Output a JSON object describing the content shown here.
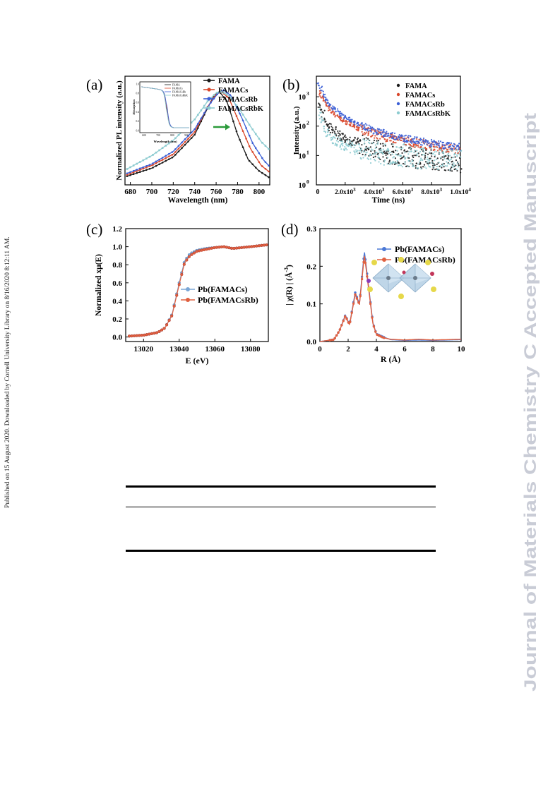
{
  "sidebar_text": "Published on 15 August 2020. Downloaded by Cornell University Library on 8/16/2020 8:12:11 AM.",
  "watermark": "Journal of Materials Chemistry C Accepted Manuscript",
  "colors": {
    "FAMA": "#1a1a1a",
    "FAMACs": "#d9472b",
    "FAMACsRb": "#3b5fd6",
    "FAMACsRbK": "#8ccbd0"
  },
  "figure": {
    "panel_a": {
      "label": "(a)",
      "chart_data": {
        "type": "line",
        "xlabel": "Wavelength (nm)",
        "ylabel": "Normalized PL intensity (a.u.)",
        "xlim": [
          675,
          810
        ],
        "xticks": [
          "680",
          "700",
          "720",
          "740",
          "760",
          "780",
          "800"
        ],
        "series": [
          {
            "name": "FAMA",
            "points": [
              [
                676,
                0.06
              ],
              [
                700,
                0.12
              ],
              [
                720,
                0.2
              ],
              [
                740,
                0.36
              ],
              [
                750,
                0.52
              ],
              [
                758,
                0.64
              ],
              [
                763,
                0.67
              ],
              [
                770,
                0.6
              ],
              [
                780,
                0.36
              ],
              [
                790,
                0.18
              ],
              [
                800,
                0.1
              ],
              [
                810,
                0.05
              ]
            ]
          },
          {
            "name": "FAMACs",
            "points": [
              [
                676,
                0.07
              ],
              [
                700,
                0.14
              ],
              [
                720,
                0.22
              ],
              [
                740,
                0.38
              ],
              [
                752,
                0.56
              ],
              [
                760,
                0.65
              ],
              [
                765,
                0.67
              ],
              [
                772,
                0.62
              ],
              [
                782,
                0.44
              ],
              [
                792,
                0.26
              ],
              [
                802,
                0.14
              ],
              [
                810,
                0.09
              ]
            ]
          },
          {
            "name": "FAMACsRb",
            "points": [
              [
                676,
                0.08
              ],
              [
                700,
                0.15
              ],
              [
                720,
                0.24
              ],
              [
                740,
                0.4
              ],
              [
                754,
                0.58
              ],
              [
                762,
                0.66
              ],
              [
                767,
                0.68
              ],
              [
                774,
                0.64
              ],
              [
                784,
                0.48
              ],
              [
                794,
                0.3
              ],
              [
                804,
                0.18
              ],
              [
                810,
                0.13
              ]
            ]
          },
          {
            "name": "FAMACsRbK",
            "points": [
              [
                676,
                0.11
              ],
              [
                700,
                0.21
              ],
              [
                720,
                0.32
              ],
              [
                740,
                0.47
              ],
              [
                752,
                0.6
              ],
              [
                760,
                0.66
              ],
              [
                765,
                0.67
              ],
              [
                772,
                0.64
              ],
              [
                782,
                0.54
              ],
              [
                792,
                0.42
              ],
              [
                802,
                0.31
              ],
              [
                810,
                0.25
              ]
            ]
          }
        ],
        "inset": {
          "xlabel": "Wavelength (nm)",
          "ylabel": "Absorption",
          "xticks": [
            "600",
            "700",
            "800",
            "900"
          ],
          "yticks": [
            "0.0",
            "0.2",
            "0.4",
            "0.6",
            "0.8",
            "1.0"
          ],
          "legend": [
            "FAMA",
            "FAMACs",
            "FAMACsRb",
            "FAMACsRbK"
          ]
        }
      }
    },
    "panel_b": {
      "label": "(b)",
      "chart_data": {
        "type": "scatter",
        "xlabel": "Time (ns)",
        "ylabel": "Intensity (a.u.)",
        "log_y": true,
        "xlim": [
          0,
          10000
        ],
        "ylim": [
          1,
          5000
        ],
        "xticks": [
          {
            "mantissa": "2.0x10",
            "exp": "3"
          },
          {
            "mantissa": "4.0x10",
            "exp": "3"
          },
          {
            "mantissa": "6.0x10",
            "exp": "3"
          },
          {
            "mantissa": "8.0x10",
            "exp": "3"
          },
          {
            "mantissa": "1.0x10",
            "exp": "4"
          }
        ],
        "yticks": [
          {
            "base": "10",
            "exp": "0"
          },
          {
            "base": "10",
            "exp": "1"
          },
          {
            "base": "10",
            "exp": "2"
          },
          {
            "base": "10",
            "exp": "3"
          }
        ],
        "series": [
          {
            "name": "FAMA",
            "points": [
              [
                200,
                600
              ],
              [
                600,
                160
              ],
              [
                1000,
                85
              ],
              [
                1500,
                55
              ],
              [
                2000,
                40
              ],
              [
                3000,
                25
              ],
              [
                4000,
                17
              ],
              [
                5000,
                12
              ],
              [
                6000,
                10
              ],
              [
                7000,
                8
              ],
              [
                8000,
                7
              ],
              [
                9000,
                6
              ],
              [
                10000,
                5
              ]
            ]
          },
          {
            "name": "FAMACs",
            "points": [
              [
                200,
                1500
              ],
              [
                600,
                620
              ],
              [
                1000,
                350
              ],
              [
                1500,
                210
              ],
              [
                2000,
                140
              ],
              [
                3000,
                80
              ],
              [
                4000,
                55
              ],
              [
                5000,
                40
              ],
              [
                6000,
                32
              ],
              [
                7000,
                26
              ],
              [
                8000,
                22
              ],
              [
                9000,
                18
              ],
              [
                10000,
                15
              ]
            ]
          },
          {
            "name": "FAMACsRb",
            "points": [
              [
                200,
                2800
              ],
              [
                600,
                900
              ],
              [
                1000,
                500
              ],
              [
                1500,
                300
              ],
              [
                2000,
                200
              ],
              [
                3000,
                110
              ],
              [
                4000,
                72
              ],
              [
                5000,
                52
              ],
              [
                6000,
                40
              ],
              [
                7000,
                32
              ],
              [
                8000,
                26
              ],
              [
                9000,
                22
              ],
              [
                10000,
                19
              ]
            ]
          },
          {
            "name": "FAMACsRbK",
            "points": [
              [
                200,
                300
              ],
              [
                600,
                70
              ],
              [
                1000,
                40
              ],
              [
                1500,
                28
              ],
              [
                2000,
                22
              ],
              [
                3000,
                16
              ],
              [
                4000,
                13
              ],
              [
                5000,
                11
              ],
              [
                6000,
                10
              ],
              [
                7000,
                9
              ],
              [
                8000,
                8
              ],
              [
                9000,
                8
              ],
              [
                10000,
                7
              ]
            ]
          }
        ]
      }
    },
    "panel_c": {
      "label": "(c)",
      "chart_data": {
        "type": "line",
        "xlabel": "E (eV)",
        "ylabel": "Normalized xμ(E)",
        "xlim": [
          13010,
          13090
        ],
        "ylim": [
          -0.05,
          1.2
        ],
        "xticks": [
          "13020",
          "13040",
          "13060",
          "13080"
        ],
        "yticks": [
          "0.0",
          "0.2",
          "0.4",
          "0.6",
          "0.8",
          "1.0",
          "1.2"
        ],
        "series": [
          {
            "name": "Pb(FAMACs)",
            "points": [
              [
                13012,
                0.01
              ],
              [
                13020,
                0.02
              ],
              [
                13028,
                0.05
              ],
              [
                13032,
                0.1
              ],
              [
                13036,
                0.25
              ],
              [
                13040,
                0.6
              ],
              [
                13043,
                0.84
              ],
              [
                13046,
                0.92
              ],
              [
                13050,
                0.96
              ],
              [
                13055,
                0.98
              ],
              [
                13060,
                0.99
              ],
              [
                13065,
                1.0
              ],
              [
                13070,
                0.98
              ],
              [
                13075,
                0.99
              ],
              [
                13080,
                1.0
              ],
              [
                13089,
                1.02
              ]
            ]
          },
          {
            "name": "Pb(FAMACsRb)",
            "points": [
              [
                13012,
                0.01
              ],
              [
                13020,
                0.02
              ],
              [
                13028,
                0.05
              ],
              [
                13032,
                0.1
              ],
              [
                13036,
                0.24
              ],
              [
                13040,
                0.58
              ],
              [
                13043,
                0.82
              ],
              [
                13046,
                0.9
              ],
              [
                13050,
                0.95
              ],
              [
                13055,
                0.97
              ],
              [
                13060,
                0.99
              ],
              [
                13065,
                1.0
              ],
              [
                13070,
                0.98
              ],
              [
                13075,
                0.99
              ],
              [
                13080,
                1.0
              ],
              [
                13089,
                1.02
              ]
            ]
          }
        ],
        "legend_colors": [
          "#7aa6d6",
          "#e06040"
        ]
      }
    },
    "panel_d": {
      "label": "(d)",
      "chart_data": {
        "type": "line",
        "xlabel": "R (Å)",
        "ylabel_parts": {
          "pre": "| χ(R) | (Å",
          "exp": "-3",
          "post": ")"
        },
        "xlim": [
          0,
          10
        ],
        "ylim": [
          0,
          0.3
        ],
        "xticks": [
          "0",
          "2",
          "4",
          "6",
          "8",
          "10"
        ],
        "yticks": [
          "0.0",
          "0.1",
          "0.2",
          "0.3"
        ],
        "series": [
          {
            "name": "Pb(FAMACs)",
            "points": [
              [
                0,
                0
              ],
              [
                1,
                0.005
              ],
              [
                1.4,
                0.03
              ],
              [
                1.8,
                0.07
              ],
              [
                2.1,
                0.045
              ],
              [
                2.5,
                0.13
              ],
              [
                2.8,
                0.1
              ],
              [
                3.15,
                0.24
              ],
              [
                3.5,
                0.13
              ],
              [
                3.75,
                0.05
              ],
              [
                4.0,
                0.02
              ],
              [
                4.5,
                0.012
              ],
              [
                5.0,
                0.005
              ],
              [
                6,
                0.003
              ],
              [
                7,
                0.004
              ],
              [
                8,
                0.003
              ],
              [
                9,
                0.004
              ],
              [
                10,
                0.005
              ]
            ]
          },
          {
            "name": "Pb(FAMACsRb)",
            "points": [
              [
                0,
                0
              ],
              [
                1,
                0.005
              ],
              [
                1.4,
                0.03
              ],
              [
                1.8,
                0.068
              ],
              [
                2.1,
                0.044
              ],
              [
                2.5,
                0.125
              ],
              [
                2.8,
                0.098
              ],
              [
                3.15,
                0.23
              ],
              [
                3.5,
                0.125
              ],
              [
                3.75,
                0.048
              ],
              [
                4.0,
                0.019
              ],
              [
                4.5,
                0.01
              ],
              [
                5.0,
                0.006
              ],
              [
                6,
                0.004
              ],
              [
                7,
                0.006
              ],
              [
                8,
                0.004
              ],
              [
                9,
                0.005
              ],
              [
                10,
                0.006
              ]
            ]
          }
        ],
        "legend_colors": [
          "#4a78d6",
          "#e06040"
        ]
      }
    }
  }
}
